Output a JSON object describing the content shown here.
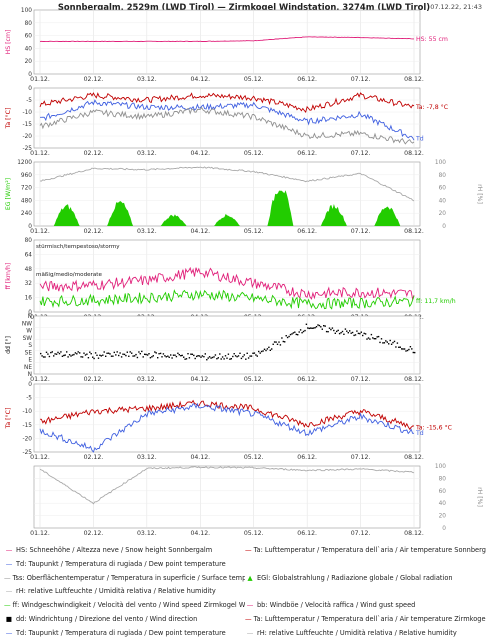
{
  "header": {
    "title": "Sonnbergalm, 2529m (LWD Tirol) — Zirmkogel Windstation, 3274m (LWD Tirol)",
    "timestamp": "07.12.22, 21:43"
  },
  "chart_data": [
    {
      "type": "line",
      "ylabel": "HS [cm]",
      "ylim": [
        0,
        100
      ],
      "x": [
        "01.12.",
        "02.12.",
        "03.12.",
        "04.12.",
        "05.12.",
        "06.12.",
        "07.12.",
        "08.12."
      ],
      "series": [
        {
          "name": "HS: 55 cm",
          "color": "#e0207a",
          "values": [
            51,
            51,
            51,
            51,
            52,
            58,
            57,
            55
          ]
        }
      ]
    },
    {
      "type": "line",
      "ylabel": "Ta [°C]",
      "ylim": [
        -25,
        0
      ],
      "x": [
        "01.12.",
        "02.12.",
        "03.12.",
        "04.12.",
        "05.12.",
        "06.12.",
        "07.12.",
        "08.12."
      ],
      "series": [
        {
          "name": "Ta: -7,8 °C",
          "color": "#c00000",
          "values": [
            -7,
            -3,
            -5,
            -3,
            -4,
            -9,
            -3,
            -8
          ]
        },
        {
          "name": "Td",
          "color": "#4060e0",
          "values": [
            -13,
            -6,
            -8,
            -8,
            -7,
            -14,
            -11,
            -21
          ]
        },
        {
          "name": "Tss",
          "color": "#909090",
          "values": [
            -16,
            -10,
            -12,
            -9,
            -12,
            -20,
            -19,
            -23
          ]
        }
      ]
    },
    {
      "type": "area",
      "ylabel": "EG [W/m²]",
      "y2label": "rH [%]",
      "ylim": [
        0,
        1200
      ],
      "y2lim": [
        0,
        100
      ],
      "x": [
        "01.12.",
        "02.12.",
        "03.12.",
        "04.12.",
        "05.12.",
        "06.12.",
        "07.12.",
        "08.12."
      ],
      "series": [
        {
          "name": "EGl",
          "color": "#22cc00",
          "peaks": [
            420,
            500,
            230,
            230,
            840,
            430,
            420
          ]
        },
        {
          "name": "rH",
          "color": "#aaaaaa",
          "values": [
            70,
            90,
            88,
            92,
            85,
            70,
            82,
            40
          ]
        }
      ]
    },
    {
      "type": "line",
      "ylabel": "ff [km/h]",
      "ylim": [
        0,
        80
      ],
      "annotations": [
        "stürmisch/tempestoso/stormy",
        "mäßig/medio/moderate"
      ],
      "x": [
        "01.12.",
        "02.12.",
        "03.12.",
        "04.12.",
        "05.12.",
        "06.12.",
        "07.12.",
        "08.12."
      ],
      "series": [
        {
          "name": "bb",
          "color": "#e0207a",
          "values": [
            28,
            30,
            35,
            45,
            32,
            20,
            22,
            20
          ]
        },
        {
          "name": "ff: 11,7 km/h",
          "color": "#22cc00",
          "values": [
            12,
            13,
            16,
            20,
            15,
            9,
            10,
            12
          ]
        }
      ]
    },
    {
      "type": "scatter",
      "ylabel": "dd [°]",
      "ytick_labels": [
        "N",
        "NW",
        "W",
        "SW",
        "S",
        "SE",
        "E",
        "NE",
        "N"
      ],
      "x": [
        "01.12.",
        "02.12.",
        "03.12.",
        "04.12.",
        "05.12.",
        "06.12.",
        "07.12.",
        "08.12."
      ],
      "series": [
        {
          "name": "dd",
          "color": "#000000",
          "values": [
            130,
            120,
            125,
            110,
            115,
            300,
            250,
            150
          ]
        }
      ]
    },
    {
      "type": "line",
      "ylabel": "Ta [°C]",
      "ylim": [
        -25,
        0
      ],
      "x": [
        "01.12.",
        "02.12.",
        "03.12.",
        "04.12.",
        "05.12.",
        "06.12.",
        "07.12.",
        "08.12."
      ],
      "series": [
        {
          "name": "Ta: -15,6 °C",
          "color": "#c00000",
          "values": [
            -14,
            -10,
            -9,
            -7,
            -9,
            -15,
            -10,
            -16
          ]
        },
        {
          "name": "Td",
          "color": "#4060e0",
          "values": [
            -17,
            -24,
            -11,
            -8,
            -11,
            -18,
            -12,
            -18
          ]
        }
      ]
    },
    {
      "type": "line",
      "ylabel": "",
      "y2label": "rH [%]",
      "y2lim": [
        0,
        100
      ],
      "x": [
        "01.12.",
        "02.12.",
        "03.12.",
        "04.12.",
        "05.12.",
        "06.12.",
        "07.12.",
        "08.12."
      ],
      "series": [
        {
          "name": "rH",
          "color": "#aaaaaa",
          "values": [
            95,
            40,
            96,
            98,
            97,
            93,
            95,
            90
          ]
        }
      ]
    }
  ],
  "legend": [
    [
      {
        "sym": "—",
        "color": "#e0207a",
        "text": "HS: Schneehöhe / Altezza neve / Snow height  Sonnbergalm"
      },
      {
        "sym": "—",
        "color": "#c00000",
        "text": "Ta: Lufttemperatur / Temperatura dell`aria / Air temperature  Sonnbergalm"
      }
    ],
    [
      {
        "sym": "—",
        "color": "#4060e0",
        "text": "Td: Taupunkt / Temperatura di rugiada / Dew point temperature"
      }
    ],
    [
      {
        "sym": "—",
        "color": "#909090",
        "text": "Tss: Oberflächentemperatur / Temperatura in superficie / Surface temperature"
      },
      {
        "sym": "▲",
        "color": "#22cc00",
        "text": "EGl: Globalstrahlung / Radiazione globale / Global radiation"
      }
    ],
    [
      {
        "sym": "—",
        "color": "#aaaaaa",
        "text": "rH: relative Luftfeuchte / Umidità relativa / Relative humidity"
      }
    ],
    [
      {
        "sym": "—",
        "color": "#22cc00",
        "text": "ff: Windgeschwindigkeit / Velocità del vento / Wind speed  Zirmkogel Windstation"
      },
      {
        "sym": "—",
        "color": "#e0207a",
        "text": "bb: Windböe / Velocità raffica / Wind gust speed"
      }
    ],
    [
      {
        "sym": "■",
        "color": "#000000",
        "text": "dd: Windrichtung / Direzione del vento / Wind direction"
      },
      {
        "sym": "—",
        "color": "#c00000",
        "text": "Ta: Lufttemperatur / Temperatura dell`aria / Air temperature  Zirmkogel Windstation"
      }
    ],
    [
      {
        "sym": "—",
        "color": "#4060e0",
        "text": "Td: Taupunkt / Temperatura di rugiada / Dew point temperature"
      },
      {
        "sym": "—",
        "color": "#aaaaaa",
        "text": "rH: relative Luftfeuchte / Umidità relativa / Relative humidity"
      }
    ]
  ]
}
